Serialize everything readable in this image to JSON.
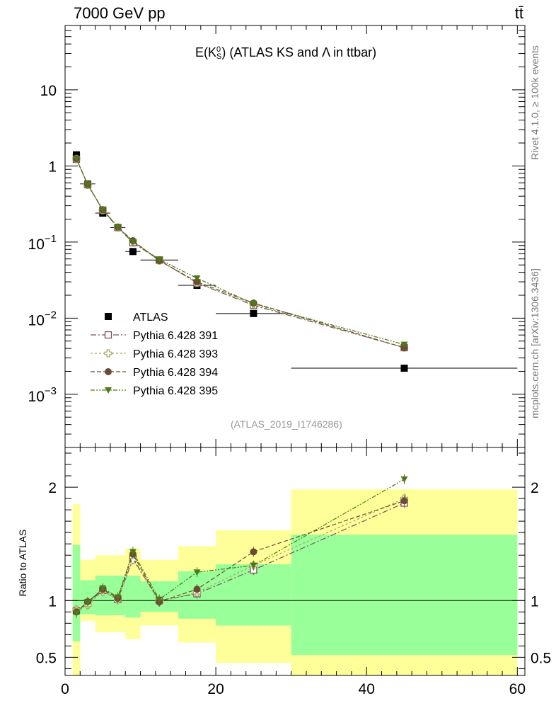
{
  "header": {
    "left": "7000 GeV pp",
    "right": "tt̄"
  },
  "side_text": {
    "rivet": "Rivet 4.1.0, ≥ 100k events",
    "mcplots": "mcplots.cern.ch [arXiv:1306.3436]"
  },
  "analysis_id": "(ATLAS_2019_I1746286)",
  "colors": {
    "ATLAS": "#000000",
    "Pythia 6.428 391": "#7a4f5e",
    "Pythia 6.428 393": "#a7a35e",
    "Pythia 6.428 394": "#6b4c33",
    "Pythia 6.428 395": "#4c7a18",
    "band_inner": "#99ff99",
    "band_outer": "#ffff99"
  },
  "chart_data": [
    {
      "type": "scatter",
      "panel": "main",
      "title": {
        "base": "E(K",
        "sub": "S",
        "sup": "0",
        "rest": ") (ATLAS KS and Λ in ttbar)"
      },
      "yscale": "log",
      "ylim": [
        0.0002,
        70
      ],
      "xlim": [
        0,
        61
      ],
      "yticks": [
        {
          "value": 10,
          "label": "10"
        },
        {
          "value": 1,
          "label": "1"
        },
        {
          "value": 0.1,
          "base": "10",
          "exp": "−1"
        },
        {
          "value": 0.01,
          "base": "10",
          "exp": "−2"
        },
        {
          "value": 0.001,
          "base": "10",
          "exp": "−3"
        }
      ],
      "x": [
        1.5,
        3,
        5,
        7,
        9,
        12.5,
        17.5,
        25,
        45
      ],
      "xerr": [
        0.5,
        1,
        1,
        1,
        1,
        2.5,
        2.5,
        5,
        15
      ],
      "series": [
        {
          "name": "ATLAS",
          "marker": "square",
          "values": [
            1.4,
            0.58,
            0.24,
            0.155,
            0.075,
            0.058,
            0.027,
            0.0115,
            0.0022
          ]
        },
        {
          "name": "Pythia 6.428 391",
          "marker": "open-square",
          "values": [
            1.22,
            0.57,
            0.262,
            0.155,
            0.098,
            0.058,
            0.029,
            0.0147,
            0.0041
          ]
        },
        {
          "name": "Pythia 6.428 393",
          "marker": "open-cross",
          "values": [
            1.24,
            0.56,
            0.262,
            0.155,
            0.102,
            0.057,
            0.029,
            0.0152,
            0.0041
          ]
        },
        {
          "name": "Pythia 6.428 394",
          "marker": "circle",
          "values": [
            1.24,
            0.57,
            0.265,
            0.157,
            0.104,
            0.057,
            0.03,
            0.0158,
            0.0041
          ]
        },
        {
          "name": "Pythia 6.428 395",
          "marker": "triangle-down",
          "values": [
            1.25,
            0.57,
            0.268,
            0.158,
            0.101,
            0.059,
            0.0335,
            0.0155,
            0.0045
          ]
        }
      ]
    },
    {
      "type": "scatter",
      "panel": "ratio",
      "ylabel": "Ratio to ATLAS",
      "xlabel": "",
      "ylim": [
        0.34,
        2.35
      ],
      "xlim": [
        0,
        61
      ],
      "xticks": [
        0,
        20,
        40,
        60
      ],
      "yticks": [
        0.5,
        1,
        2
      ],
      "bands": {
        "edges": [
          1,
          2,
          4,
          8,
          10,
          15,
          20,
          30,
          60
        ],
        "inner": [
          [
            0.64,
            1.49
          ],
          [
            0.88,
            1.18
          ],
          [
            0.87,
            1.22
          ],
          [
            0.85,
            1.22
          ],
          [
            0.9,
            1.17
          ],
          [
            0.84,
            1.26
          ],
          [
            0.78,
            1.32
          ],
          [
            0.52,
            1.58
          ]
        ],
        "outer": [
          [
            0.3,
            1.85
          ],
          [
            0.82,
            1.36
          ],
          [
            0.72,
            1.4
          ],
          [
            0.66,
            1.46
          ],
          [
            0.78,
            1.36
          ],
          [
            0.63,
            1.48
          ],
          [
            0.45,
            1.62
          ],
          [
            0.3,
            1.98
          ]
        ]
      },
      "series": [
        {
          "name": "Pythia 6.428 391",
          "values": [
            0.91,
            0.98,
            1.09,
            1.01,
            1.37,
            1.0,
            1.06,
            1.27,
            1.86
          ]
        },
        {
          "name": "Pythia 6.428 393",
          "values": [
            0.92,
            0.96,
            1.08,
            1.01,
            1.36,
            0.99,
            1.07,
            1.31,
            1.9
          ]
        },
        {
          "name": "Pythia 6.428 394",
          "values": [
            0.9,
            0.99,
            1.1,
            1.02,
            1.41,
            0.99,
            1.1,
            1.43,
            1.88
          ]
        },
        {
          "name": "Pythia 6.428 395",
          "values": [
            0.89,
            0.98,
            1.11,
            1.03,
            1.43,
            1.01,
            1.25,
            1.31,
            2.07
          ]
        }
      ]
    }
  ]
}
